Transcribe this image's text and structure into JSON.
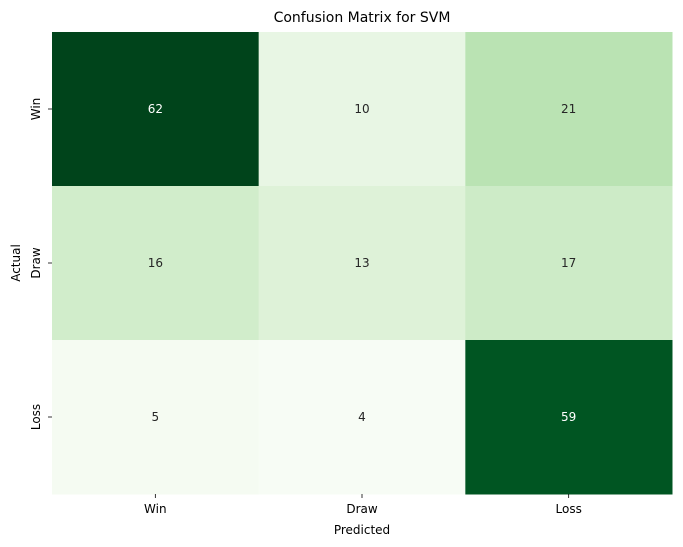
{
  "chart_data": {
    "type": "heatmap",
    "title": "Confusion Matrix for SVM",
    "xlabel": "Predicted",
    "ylabel": "Actual",
    "x_categories": [
      "Win",
      "Draw",
      "Loss"
    ],
    "y_categories": [
      "Win",
      "Draw",
      "Loss"
    ],
    "values": [
      [
        62,
        10,
        21
      ],
      [
        16,
        13,
        17
      ],
      [
        5,
        4,
        59
      ]
    ],
    "colormap": "Greens",
    "colorbar": false,
    "grid": false
  }
}
